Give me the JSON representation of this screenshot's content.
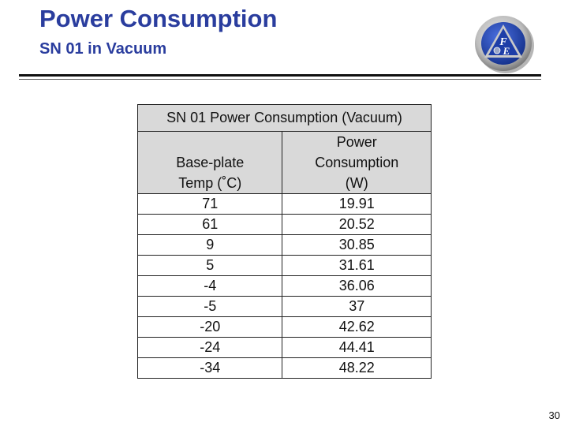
{
  "slide": {
    "title": "Power Consumption",
    "subtitle": "SN 01 in Vacuum",
    "page_number": "30",
    "logo_text": "FE"
  },
  "table": {
    "caption": "SN 01 Power Consumption (Vacuum)",
    "headers": [
      [
        "Base-plate",
        "Temp (˚C)"
      ],
      [
        "Power",
        "Consumption",
        "(W)"
      ]
    ],
    "rows": [
      [
        "71",
        "19.91"
      ],
      [
        "61",
        "20.52"
      ],
      [
        "9",
        "30.85"
      ],
      [
        "5",
        "31.61"
      ],
      [
        "-4",
        "36.06"
      ],
      [
        "-5",
        "37"
      ],
      [
        "-20",
        "42.62"
      ],
      [
        "-24",
        "44.41"
      ],
      [
        "-34",
        "48.22"
      ]
    ]
  },
  "colors": {
    "title": "#2a3d9e",
    "header_fill": "#d9d9d9",
    "logo_blue": "#1e3ea8"
  }
}
